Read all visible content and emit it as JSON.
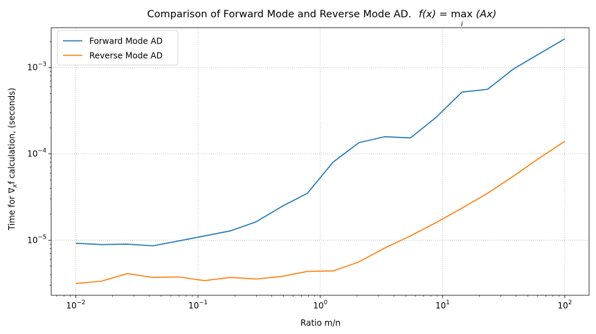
{
  "chart_data": {
    "type": "line",
    "title": "Comparison of Forward Mode and Reverse Mode AD.",
    "title_math": {
      "lhs": "f(x) = ",
      "op": "max",
      "op_sub": "i",
      "rhs": "(Ax)"
    },
    "xlabel": "Ratio m/n",
    "ylabel": {
      "pre": "Time for ",
      "nabla": "∇",
      "sub": "x",
      "post": "f calculation, (seconds)"
    },
    "x_scale": "log",
    "y_scale": "log",
    "xlim": [
      0.0063,
      158
    ],
    "ylim": [
      2.3e-06,
      0.0029
    ],
    "x_ticks": [
      {
        "value": 0.01,
        "base": "10",
        "exp": "−2"
      },
      {
        "value": 0.1,
        "base": "10",
        "exp": "−1"
      },
      {
        "value": 1,
        "base": "10",
        "exp": "0"
      },
      {
        "value": 10,
        "base": "10",
        "exp": "1"
      },
      {
        "value": 100,
        "base": "10",
        "exp": "2"
      }
    ],
    "y_ticks": [
      {
        "value": 1e-05,
        "base": "10",
        "exp": "−5"
      },
      {
        "value": 0.0001,
        "base": "10",
        "exp": "−4"
      },
      {
        "value": 0.001,
        "base": "10",
        "exp": "−3"
      }
    ],
    "grid": true,
    "legend_position": "top-left",
    "x": [
      0.01,
      0.0162,
      0.0264,
      0.0428,
      0.0695,
      0.113,
      0.183,
      0.298,
      0.483,
      0.785,
      1.27,
      2.07,
      3.36,
      5.46,
      8.86,
      14.4,
      23.4,
      37.9,
      61.6,
      100
    ],
    "series": [
      {
        "name": "Forward Mode AD",
        "color": "#1f77b4",
        "values": [
          9.2e-06,
          8.9e-06,
          9e-06,
          8.6e-06,
          9.8e-06,
          1.12e-05,
          1.28e-05,
          1.63e-05,
          2.45e-05,
          3.5e-05,
          8e-05,
          0.000135,
          0.000158,
          0.000153,
          0.000265,
          0.00052,
          0.00056,
          0.00096,
          0.00144,
          0.00215
        ]
      },
      {
        "name": "Reverse Mode AD",
        "color": "#ff7f0e",
        "values": [
          3.15e-06,
          3.35e-06,
          4.1e-06,
          3.7e-06,
          3.75e-06,
          3.4e-06,
          3.7e-06,
          3.55e-06,
          3.8e-06,
          4.35e-06,
          4.4e-06,
          5.6e-06,
          8.1e-06,
          1.12e-05,
          1.6e-05,
          2.35e-05,
          3.5e-05,
          5.5e-05,
          8.9e-05,
          0.00014
        ]
      }
    ]
  }
}
